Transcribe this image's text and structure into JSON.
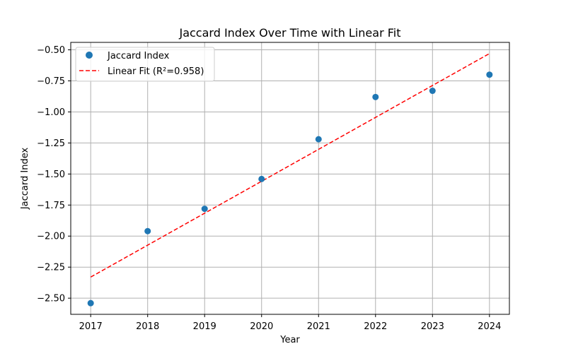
{
  "chart_data": {
    "type": "scatter",
    "title": "Jaccard Index Over Time with Linear Fit",
    "xlabel": "Year",
    "ylabel": "Jaccard Index",
    "xlim": [
      2016.65,
      2024.35
    ],
    "ylim": [
      -2.63,
      -0.44
    ],
    "x_ticks": [
      2017,
      2018,
      2019,
      2020,
      2021,
      2022,
      2023,
      2024
    ],
    "x_tick_labels": [
      "2017",
      "2018",
      "2019",
      "2020",
      "2021",
      "2022",
      "2023",
      "2024"
    ],
    "y_ticks": [
      -2.5,
      -2.25,
      -2.0,
      -1.75,
      -1.5,
      -1.25,
      -1.0,
      -0.75,
      -0.5
    ],
    "y_tick_labels": [
      "−2.50",
      "−2.25",
      "−2.00",
      "−1.75",
      "−1.50",
      "−1.25",
      "−1.00",
      "−0.75",
      "−0.50"
    ],
    "grid": true,
    "legend_position": "top-left",
    "series": [
      {
        "name": "Jaccard Index",
        "kind": "scatter",
        "color": "#1f77b4",
        "x": [
          2017,
          2018,
          2019,
          2020,
          2021,
          2022,
          2023,
          2024
        ],
        "y": [
          -2.54,
          -1.96,
          -1.78,
          -1.54,
          -1.22,
          -0.88,
          -0.83,
          -0.7
        ]
      },
      {
        "name": "Linear Fit (R²=0.958)",
        "kind": "line",
        "style": "dashed",
        "color": "#ff0000",
        "x": [
          2017,
          2024
        ],
        "y": [
          -2.33,
          -0.53
        ]
      }
    ]
  }
}
